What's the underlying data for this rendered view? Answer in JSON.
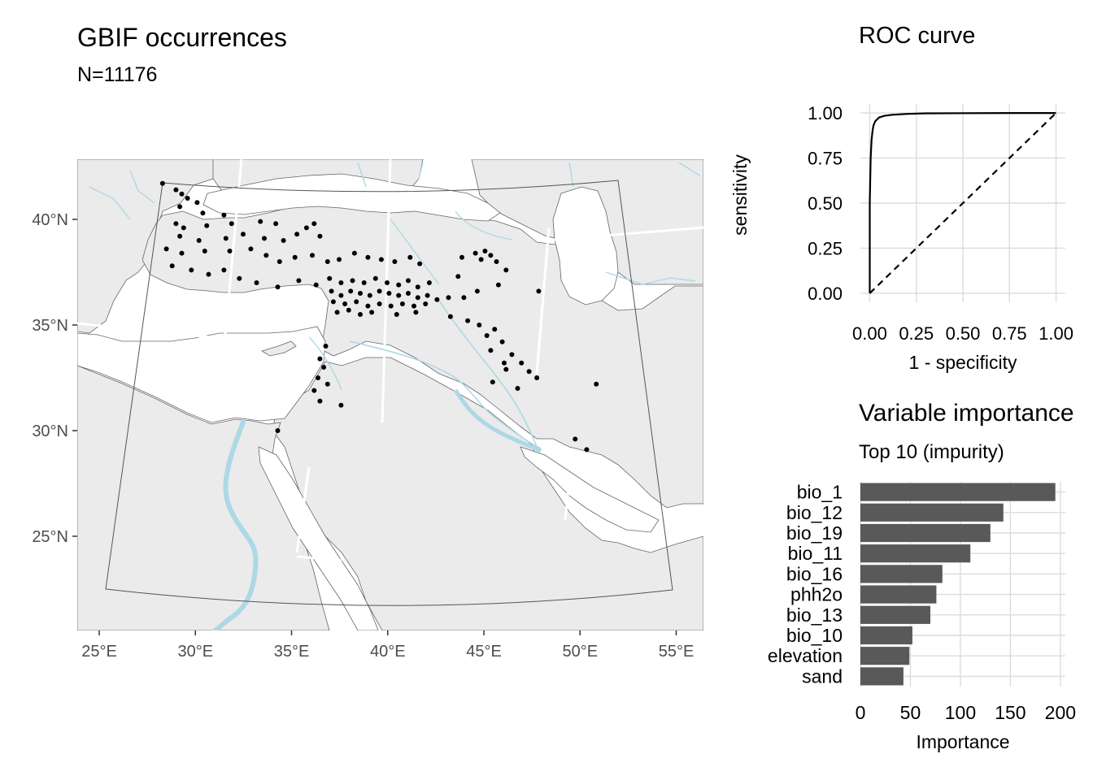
{
  "map_panel": {
    "title": "GBIF occurrences",
    "subtitle": "N=11176",
    "lat_ticks": [
      "40°N",
      "35°N",
      "30°N",
      "25°N"
    ],
    "lon_ticks": [
      "25°E",
      "30°E",
      "35°E",
      "40°E",
      "45°E",
      "50°E",
      "55°E"
    ],
    "colors": {
      "land": "#ebebeb",
      "rivers": "#add8e6",
      "points": "#000000"
    }
  },
  "roc_panel": {
    "title": "ROC curve",
    "xlabel": "1 - specificity",
    "ylabel": "sensitivity",
    "x_ticks": [
      "0.00",
      "0.25",
      "0.50",
      "0.75",
      "1.00"
    ],
    "y_ticks": [
      "0.00",
      "0.25",
      "0.50",
      "0.75",
      "1.00"
    ]
  },
  "vi_panel": {
    "title": "Variable importance",
    "subtitle": "Top 10 (impurity)",
    "xlabel": "Importance",
    "x_ticks": [
      "0",
      "50",
      "100",
      "150",
      "200"
    ],
    "bar_color": "#595959"
  },
  "chart_data": [
    {
      "type": "scatter",
      "title": "GBIF occurrences",
      "subtitle": "N=11176",
      "xlabel": "",
      "ylabel": "",
      "xlim": [
        24,
        56
      ],
      "ylim": [
        22,
        42
      ],
      "grid": true,
      "points": [
        [
          28.3,
          41.7
        ],
        [
          29.0,
          41.4
        ],
        [
          29.3,
          41.2
        ],
        [
          29.6,
          41.0
        ],
        [
          30.1,
          40.8
        ],
        [
          29.2,
          40.6
        ],
        [
          30.4,
          40.3
        ],
        [
          31.5,
          40.2
        ],
        [
          29.0,
          39.8
        ],
        [
          29.4,
          39.6
        ],
        [
          30.6,
          39.7
        ],
        [
          31.9,
          39.8
        ],
        [
          33.4,
          39.9
        ],
        [
          34.2,
          39.8
        ],
        [
          35.8,
          39.6
        ],
        [
          36.2,
          39.8
        ],
        [
          29.2,
          39.2
        ],
        [
          30.2,
          39.0
        ],
        [
          31.6,
          39.1
        ],
        [
          32.5,
          39.3
        ],
        [
          33.6,
          39.1
        ],
        [
          34.6,
          39.0
        ],
        [
          35.3,
          39.3
        ],
        [
          36.5,
          39.2
        ],
        [
          28.5,
          38.6
        ],
        [
          29.3,
          38.4
        ],
        [
          30.5,
          38.5
        ],
        [
          31.8,
          38.5
        ],
        [
          32.9,
          38.6
        ],
        [
          33.7,
          38.3
        ],
        [
          34.4,
          38.0
        ],
        [
          35.2,
          38.2
        ],
        [
          36.1,
          38.3
        ],
        [
          36.9,
          38.0
        ],
        [
          37.5,
          38.1
        ],
        [
          38.3,
          38.4
        ],
        [
          39.0,
          38.2
        ],
        [
          39.7,
          38.1
        ],
        [
          40.4,
          38.0
        ],
        [
          41.2,
          38.2
        ],
        [
          41.7,
          37.9
        ],
        [
          28.8,
          37.8
        ],
        [
          29.8,
          37.6
        ],
        [
          30.7,
          37.4
        ],
        [
          31.5,
          37.6
        ],
        [
          32.3,
          37.2
        ],
        [
          33.2,
          37.0
        ],
        [
          34.3,
          36.8
        ],
        [
          35.4,
          37.1
        ],
        [
          36.3,
          36.9
        ],
        [
          37.0,
          37.2
        ],
        [
          37.6,
          37.0
        ],
        [
          38.2,
          37.1
        ],
        [
          38.8,
          37.0
        ],
        [
          39.4,
          37.2
        ],
        [
          40.0,
          37.0
        ],
        [
          40.6,
          36.9
        ],
        [
          41.1,
          37.1
        ],
        [
          41.6,
          36.8
        ],
        [
          42.2,
          37.0
        ],
        [
          37.1,
          36.6
        ],
        [
          37.6,
          36.4
        ],
        [
          38.1,
          36.6
        ],
        [
          38.6,
          36.5
        ],
        [
          39.1,
          36.4
        ],
        [
          39.6,
          36.6
        ],
        [
          40.1,
          36.5
        ],
        [
          40.6,
          36.4
        ],
        [
          41.1,
          36.5
        ],
        [
          41.6,
          36.3
        ],
        [
          42.1,
          36.4
        ],
        [
          42.6,
          36.2
        ],
        [
          43.2,
          36.3
        ],
        [
          44.0,
          36.3
        ],
        [
          37.2,
          36.1
        ],
        [
          37.8,
          36.0
        ],
        [
          38.4,
          36.1
        ],
        [
          39.0,
          35.9
        ],
        [
          39.6,
          36.0
        ],
        [
          40.2,
          35.9
        ],
        [
          40.8,
          36.0
        ],
        [
          41.4,
          35.9
        ],
        [
          42.0,
          36.0
        ],
        [
          37.4,
          35.6
        ],
        [
          38.0,
          35.7
        ],
        [
          38.6,
          35.5
        ],
        [
          39.2,
          35.6
        ],
        [
          40.5,
          35.5
        ],
        [
          41.5,
          35.6
        ],
        [
          43.3,
          35.4
        ],
        [
          44.2,
          35.2
        ],
        [
          44.8,
          35.0
        ],
        [
          45.2,
          34.5
        ],
        [
          45.6,
          34.8
        ],
        [
          46.0,
          34.2
        ],
        [
          45.4,
          33.8
        ],
        [
          46.5,
          33.6
        ],
        [
          47.0,
          33.2
        ],
        [
          47.4,
          32.8
        ],
        [
          46.2,
          32.9
        ],
        [
          47.8,
          32.5
        ],
        [
          46.8,
          32.0
        ],
        [
          45.5,
          32.3
        ],
        [
          46.1,
          33.2
        ],
        [
          44.6,
          38.4
        ],
        [
          44.9,
          38.1
        ],
        [
          45.1,
          38.5
        ],
        [
          45.4,
          38.3
        ],
        [
          45.7,
          38.0
        ],
        [
          46.2,
          37.6
        ],
        [
          45.8,
          36.9
        ],
        [
          44.7,
          36.6
        ],
        [
          47.9,
          36.6
        ],
        [
          43.7,
          37.3
        ],
        [
          43.9,
          38.2
        ],
        [
          36.8,
          34.0
        ],
        [
          36.5,
          33.4
        ],
        [
          36.7,
          33.0
        ],
        [
          36.4,
          32.5
        ],
        [
          36.9,
          32.2
        ],
        [
          36.2,
          31.9
        ],
        [
          36.5,
          31.4
        ],
        [
          37.6,
          31.2
        ],
        [
          34.3,
          30.0
        ],
        [
          49.8,
          29.6
        ],
        [
          50.4,
          29.1
        ],
        [
          50.9,
          32.2
        ]
      ]
    },
    {
      "type": "line",
      "title": "ROC curve",
      "xlabel": "1 - specificity",
      "ylabel": "sensitivity",
      "xlim": [
        0,
        1
      ],
      "ylim": [
        0,
        1
      ],
      "grid": true,
      "series": [
        {
          "x": [
            0,
            0.0,
            0.005,
            0.01,
            0.015,
            0.02,
            0.03,
            0.05,
            0.08,
            0.12,
            0.2,
            0.3,
            0.5,
            0.75,
            0.98,
            1.0
          ],
          "y": [
            0,
            0.5,
            0.75,
            0.85,
            0.9,
            0.93,
            0.955,
            0.975,
            0.985,
            0.99,
            0.995,
            0.998,
            0.999,
            1.0,
            1.0,
            1.0
          ],
          "style": "solid"
        },
        {
          "x": [
            0,
            1
          ],
          "y": [
            0,
            1
          ],
          "style": "dashed"
        }
      ]
    },
    {
      "type": "bar",
      "orientation": "horizontal",
      "title": "Variable importance",
      "subtitle": "Top 10 (impurity)",
      "xlabel": "Importance",
      "xlim": [
        0,
        205
      ],
      "grid": true,
      "categories": [
        "bio_1",
        "bio_12",
        "bio_19",
        "bio_11",
        "bio_16",
        "phh2o",
        "bio_13",
        "bio_10",
        "elevation",
        "sand"
      ],
      "values": [
        195,
        143,
        130,
        110,
        82,
        76,
        70,
        52,
        49,
        43
      ]
    }
  ]
}
